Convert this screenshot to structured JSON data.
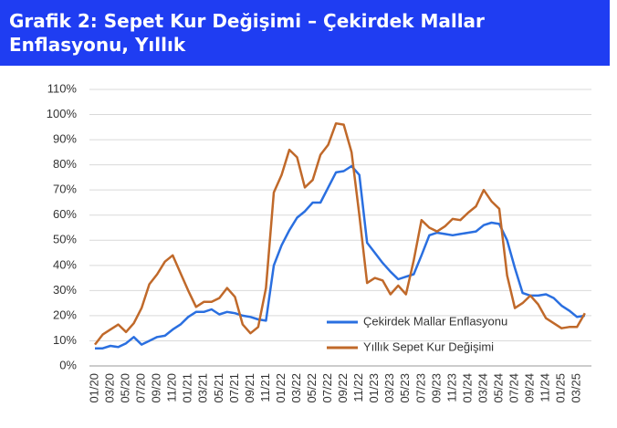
{
  "chart_data": {
    "type": "line",
    "title": "Grafik 2: Sepet Kur Değişimi – Çekirdek Mallar Enflasyonu, Yıllık",
    "categories": [
      "01/20",
      null,
      "03/20",
      null,
      "05/20",
      null,
      "07/20",
      null,
      "09/20",
      null,
      "11/20",
      null,
      "01/21",
      null,
      "03/21",
      null,
      "05/21",
      null,
      "07/21",
      null,
      "09/21",
      null,
      "11/21",
      null,
      "01/22",
      null,
      "03/22",
      null,
      "05/22",
      null,
      "07/22",
      null,
      "09/22",
      null,
      "11/22",
      null,
      "01/23",
      null,
      "03/23",
      null,
      "05/23",
      null,
      "07/23",
      null,
      "09/23",
      null,
      "11/23",
      null,
      "01/24",
      null,
      "03/24",
      null,
      "05/24",
      null,
      "07/24",
      null,
      "09/24",
      null,
      "11/24",
      null,
      "01/25",
      null,
      "03/25",
      null
    ],
    "series": [
      {
        "name": "Çekirdek Mallar Enflasyonu",
        "color": "#2a6fe0",
        "values": [
          7,
          7,
          8,
          7.5,
          9,
          11.5,
          8.5,
          10,
          11.5,
          12,
          14.5,
          16.5,
          19.5,
          21.5,
          21.5,
          22.5,
          20.5,
          21.5,
          21,
          20,
          19.5,
          18.5,
          18,
          40,
          48,
          54,
          59,
          61.5,
          65,
          65,
          71,
          77,
          77.5,
          79.5,
          76,
          49,
          45,
          41,
          37.5,
          34.5,
          35.5,
          36.5,
          44,
          52,
          53,
          52.5,
          52,
          52.5,
          53,
          53.5,
          56,
          57,
          56.5,
          50,
          39,
          29,
          28,
          28,
          28.5,
          27,
          24,
          22,
          19.5,
          20
        ]
      },
      {
        "name": "Yıllık Sepet Kur Değişimi",
        "color": "#c0692a",
        "values": [
          8.5,
          12.5,
          14.5,
          16.5,
          13.5,
          17,
          23,
          32.5,
          36.5,
          41.5,
          44,
          37,
          30,
          23.5,
          25.5,
          25.5,
          27,
          31,
          27.5,
          16.5,
          13,
          15.5,
          31,
          69,
          76,
          86,
          83,
          71,
          74,
          84,
          88,
          96.5,
          96,
          85,
          60,
          33,
          35,
          34,
          28.5,
          32,
          28.5,
          42,
          58,
          55,
          53.5,
          55.5,
          58.5,
          58,
          61,
          63.5,
          70,
          65.5,
          62.5,
          36,
          23,
          25,
          28,
          24.5,
          19,
          17,
          15,
          15.5,
          15.5,
          21
        ]
      }
    ],
    "ylim": [
      0,
      110
    ],
    "yticks": [
      {
        "value": 0,
        "label": "0%"
      },
      {
        "value": 10,
        "label": "10%"
      },
      {
        "value": 20,
        "label": "20%"
      },
      {
        "value": 30,
        "label": "30%"
      },
      {
        "value": 40,
        "label": "40%"
      },
      {
        "value": 50,
        "label": "50%"
      },
      {
        "value": 60,
        "label": "60%"
      },
      {
        "value": 70,
        "label": "70%"
      },
      {
        "value": 80,
        "label": "80%"
      },
      {
        "value": 90,
        "label": "90%"
      },
      {
        "value": 100,
        "label": "100%"
      },
      {
        "value": 110,
        "label": "110%"
      }
    ],
    "grid": true
  }
}
